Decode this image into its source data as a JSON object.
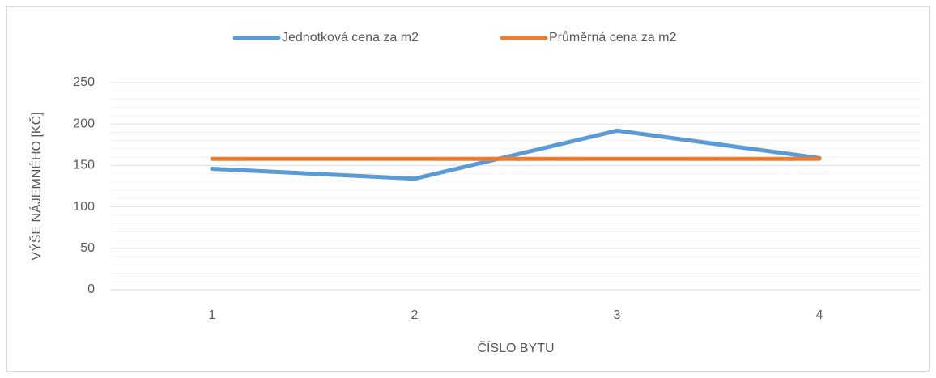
{
  "chart_data": {
    "type": "line",
    "categories": [
      "1",
      "2",
      "3",
      "4"
    ],
    "series": [
      {
        "name": "Jednotková cena za m2",
        "color": "#5b9bd5",
        "values": [
          146,
          134,
          192,
          159
        ]
      },
      {
        "name": "Průměrná cena za m2",
        "color": "#ed7d31",
        "values": [
          158,
          158,
          158,
          158
        ]
      }
    ],
    "ylim": [
      0,
      250
    ],
    "yticks": [
      0,
      50,
      100,
      150,
      200,
      250
    ],
    "minor_grid_step": 10,
    "y_label": "VÝŠE NÁJEMNÉHO [KČ]",
    "x_label": "ČÍSLO BYTU",
    "grid": true,
    "legend": "top"
  }
}
